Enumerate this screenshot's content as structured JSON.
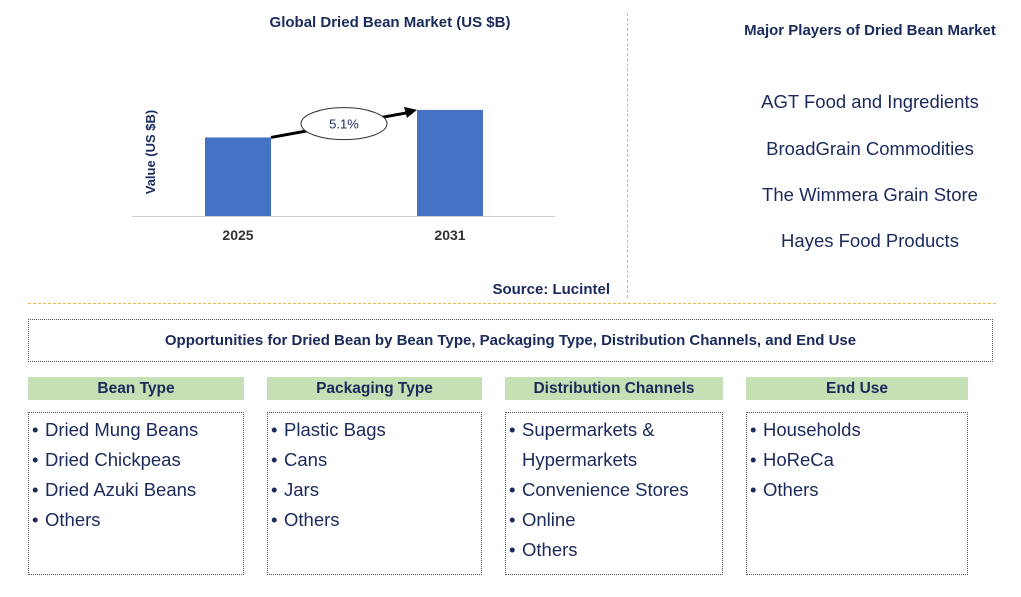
{
  "chart_data": {
    "type": "bar",
    "title": "Global Dried Bean Market (US $B)",
    "ylabel": "Value (US $B)",
    "categories": [
      "2025",
      "2031"
    ],
    "values": [
      1.0,
      1.35
    ],
    "ylim": [
      0,
      1.4
    ],
    "cagr_label": "5.1%",
    "bar_color": "#4472c4",
    "source": "Source: Lucintel"
  },
  "players": {
    "title": "Major Players of Dried Bean Market",
    "items": [
      "AGT Food and Ingredients",
      "BroadGrain Commodities",
      "The Wimmera Grain Store",
      "Hayes Food Products"
    ]
  },
  "opportunities": {
    "title": "Opportunities for Dried Bean by Bean Type, Packaging Type, Distribution Channels, and End Use",
    "header_color": "#c5e0b4",
    "categories": [
      {
        "title": "Bean Type",
        "items": [
          "Dried Mung Beans",
          "Dried Chickpeas",
          "Dried Azuki Beans",
          "Others"
        ]
      },
      {
        "title": "Packaging Type",
        "items": [
          "Plastic Bags",
          "Cans",
          "Jars",
          "Others"
        ]
      },
      {
        "title": "Distribution Channels",
        "items": [
          "Supermarkets & Hypermarkets",
          "Convenience Stores",
          "Online",
          "Others"
        ]
      },
      {
        "title": "End Use",
        "items": [
          "Households",
          "HoReCa",
          "Others"
        ]
      }
    ]
  }
}
